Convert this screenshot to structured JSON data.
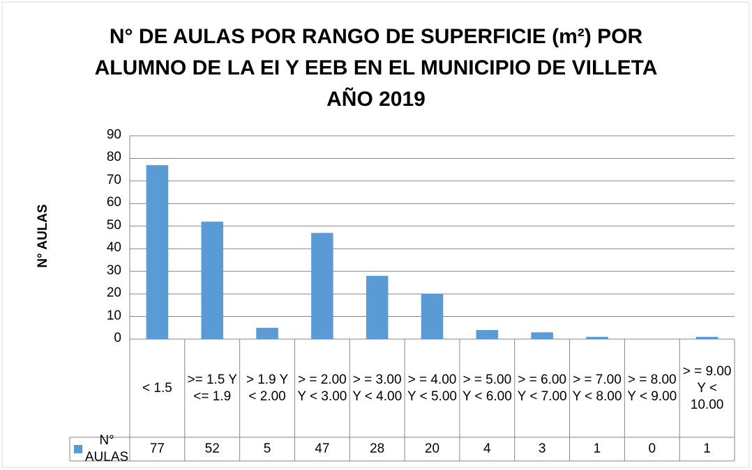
{
  "chart_data": {
    "type": "bar",
    "title": [
      "N° DE AULAS POR RANGO DE SUPERFICIE (m²) POR",
      "ALUMNO  DE LA EI Y EEB EN EL MUNICIPIO DE VILLETA",
      "AÑO 2019"
    ],
    "y_label": "N° AULAS",
    "categories": [
      "< 1.5",
      ">= 1.5 Y <= 1.9",
      "> 1.9 Y < 2.00",
      "> = 2.00 Y < 3.00",
      "> = 3.00 Y < 4.00",
      "> = 4.00 Y < 5.00",
      "> = 5.00 Y < 6.00",
      "> = 6.00 Y < 7.00",
      "> = 7.00 Y < 8.00",
      "> = 8.00 Y < 9.00",
      "> = 9.00 Y < 10.00"
    ],
    "series": [
      {
        "name": "N° AULAS",
        "color": "#5b9bd5",
        "values": [
          77,
          52,
          5,
          47,
          28,
          20,
          4,
          3,
          1,
          0,
          1
        ]
      }
    ],
    "ylim": [
      0,
      90
    ],
    "yticks": [
      0,
      10,
      20,
      30,
      40,
      50,
      60,
      70,
      80,
      90
    ],
    "grid": true,
    "data_table": true
  }
}
